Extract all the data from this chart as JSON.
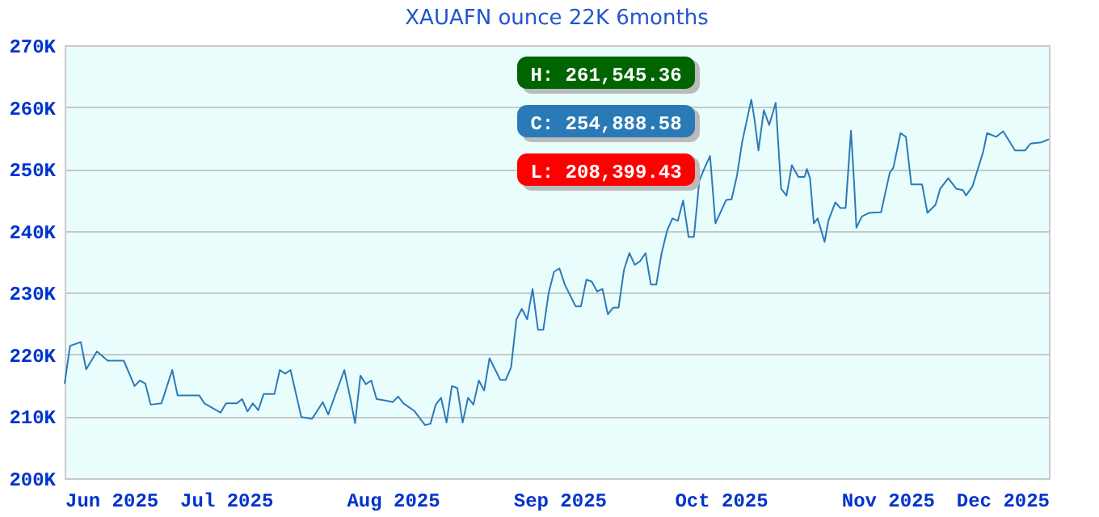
{
  "chart_data": {
    "type": "line",
    "title": "XAUAFN ounce 22K 6months",
    "annotations": [
      "H: 261,545.36",
      "C: 254,888.58",
      "L: 208,399.43"
    ],
    "x": [
      "2025-06-01",
      "2025-06-02",
      "2025-06-04",
      "2025-06-05",
      "2025-06-07",
      "2025-06-09",
      "2025-06-12",
      "2025-06-14",
      "2025-06-15",
      "2025-06-16",
      "2025-06-17",
      "2025-06-19",
      "2025-06-21",
      "2025-06-22",
      "2025-06-26",
      "2025-06-27",
      "2025-06-30",
      "2025-07-01",
      "2025-07-03",
      "2025-07-04",
      "2025-07-05",
      "2025-07-06",
      "2025-07-07",
      "2025-07-08",
      "2025-07-10",
      "2025-07-11",
      "2025-07-12",
      "2025-07-13",
      "2025-07-15",
      "2025-07-17",
      "2025-07-19",
      "2025-07-20",
      "2025-07-23",
      "2025-07-24",
      "2025-07-25",
      "2025-07-26",
      "2025-07-27",
      "2025-07-28",
      "2025-07-29",
      "2025-07-31",
      "2025-08-01",
      "2025-08-02",
      "2025-08-03",
      "2025-08-05",
      "2025-08-07",
      "2025-08-08",
      "2025-08-09",
      "2025-08-10",
      "2025-08-11",
      "2025-08-12",
      "2025-08-13",
      "2025-08-14",
      "2025-08-15",
      "2025-08-16",
      "2025-08-17",
      "2025-08-18",
      "2025-08-19",
      "2025-08-21",
      "2025-08-22",
      "2025-08-23",
      "2025-08-24",
      "2025-08-25",
      "2025-08-26",
      "2025-08-27",
      "2025-08-28",
      "2025-08-29",
      "2025-08-30",
      "2025-08-31",
      "2025-09-01",
      "2025-09-02",
      "2025-09-04",
      "2025-09-05",
      "2025-09-06",
      "2025-09-07",
      "2025-09-08",
      "2025-09-09",
      "2025-09-10",
      "2025-09-11",
      "2025-09-12",
      "2025-09-13",
      "2025-09-14",
      "2025-09-15",
      "2025-09-16",
      "2025-09-17",
      "2025-09-18",
      "2025-09-19",
      "2025-09-20",
      "2025-09-21",
      "2025-09-22",
      "2025-09-23",
      "2025-09-24",
      "2025-09-25",
      "2025-09-26",
      "2025-09-27",
      "2025-09-28",
      "2025-09-29",
      "2025-09-30",
      "2025-10-02",
      "2025-10-03",
      "2025-10-04",
      "2025-10-05",
      "2025-10-06T16:00",
      "2025-10-07T05:00",
      "2025-10-08",
      "2025-10-09",
      "2025-10-10",
      "2025-10-11T05:00",
      "2025-10-11T17:00",
      "2025-10-12T05:00",
      "2025-10-13T05:00",
      "2025-10-14T05:00",
      "2025-10-15T10:00",
      "2025-10-16T14:00",
      "2025-10-17",
      "2025-10-17T14:00",
      "2025-10-18T07:00",
      "2025-10-19",
      "2025-10-20T07:00",
      "2025-10-21",
      "2025-10-22T07:00",
      "2025-10-23T05:00",
      "2025-10-24T05:00",
      "2025-10-25T05:00",
      "2025-10-25T19:00",
      "2025-10-26T05:00",
      "2025-10-27T05:00",
      "2025-10-28T12:00",
      "2025-10-30T19:00",
      "2025-11-01T10:00",
      "2025-11-02T02:00",
      "2025-11-03T10:00",
      "2025-11-04T10:00",
      "2025-11-05T10:00",
      "2025-11-07T10:00",
      "2025-11-08T10:00",
      "2025-11-09T22:00",
      "2025-11-10T19:00",
      "2025-11-12T07:00",
      "2025-11-13T19:00",
      "2025-11-15",
      "2025-11-15T14:00",
      "2025-11-16T19:00",
      "2025-11-18T19:00",
      "2025-11-19T12:00",
      "2025-11-21T05:00",
      "2025-11-22T12:00",
      "2025-11-24T17:00",
      "2025-11-26T14:00",
      "2025-11-27T14:00",
      "2025-11-29T14:00",
      "2025-12-01"
    ],
    "series": [
      {
        "color": "#2a7ab8",
        "values": [
          215300,
          221400,
          222000,
          217600,
          220500,
          219000,
          219000,
          214900,
          215800,
          215300,
          211900,
          212100,
          217500,
          213400,
          213400,
          212100,
          210600,
          212100,
          212100,
          212800,
          210800,
          212100,
          211000,
          213600,
          213600,
          217500,
          216900,
          217500,
          209900,
          209600,
          212300,
          210300,
          217500,
          213400,
          208900,
          216600,
          215200,
          215800,
          212800,
          212500,
          212300,
          213200,
          212100,
          210900,
          208600,
          208800,
          211900,
          213000,
          209000,
          214900,
          214600,
          209000,
          213000,
          211900,
          215800,
          214200,
          219400,
          215900,
          215900,
          217900,
          225700,
          227400,
          225700,
          230600,
          224000,
          224000,
          230000,
          233400,
          233900,
          231300,
          227800,
          227800,
          232100,
          231800,
          230200,
          230600,
          226500,
          227600,
          227600,
          233700,
          236400,
          234500,
          235100,
          236400,
          231300,
          231300,
          236400,
          240000,
          242000,
          241600,
          244900,
          239000,
          239000,
          248100,
          250200,
          252100,
          241200,
          245000,
          245100,
          248900,
          254500,
          261200,
          258400,
          253000,
          259500,
          257100,
          260700,
          253700,
          246800,
          245700,
          250600,
          248700,
          248700,
          250000,
          248500,
          241200,
          242000,
          238200,
          241600,
          244600,
          243700,
          243700,
          256200,
          247600,
          240500,
          242300,
          242900,
          243000,
          249400,
          250200,
          255800,
          255200,
          247500,
          247500,
          242900,
          244200,
          246800,
          248500,
          246800,
          246600,
          245700,
          247200,
          252800,
          255800,
          255200,
          256100,
          253000,
          253000,
          254100,
          254300,
          254800
        ]
      }
    ],
    "xlim": [
      "2025-06-01",
      "2025-12-01"
    ],
    "xticks": [
      {
        "value": "2025-06-01",
        "label": "Jun 2025"
      },
      {
        "value": "2025-07-01",
        "label": "Jul 2025"
      },
      {
        "value": "2025-08-01",
        "label": "Aug 2025"
      },
      {
        "value": "2025-09-01",
        "label": "Sep 2025"
      },
      {
        "value": "2025-10-01",
        "label": "Oct 2025"
      },
      {
        "value": "2025-11-01",
        "label": "Nov 2025"
      },
      {
        "value": "2025-12-01",
        "label": "Dec 2025"
      }
    ],
    "ylim": [
      200000,
      270000
    ],
    "yticks": [
      {
        "value": 200000,
        "label": "200K"
      },
      {
        "value": 210000,
        "label": "210K"
      },
      {
        "value": 220000,
        "label": "220K"
      },
      {
        "value": 230000,
        "label": "230K"
      },
      {
        "value": 240000,
        "label": "240K"
      },
      {
        "value": 250000,
        "label": "250K"
      },
      {
        "value": 260000,
        "label": "260K"
      },
      {
        "value": 270000,
        "label": "270K"
      }
    ],
    "grid": "y",
    "marker": "none",
    "line_style": "solid"
  }
}
